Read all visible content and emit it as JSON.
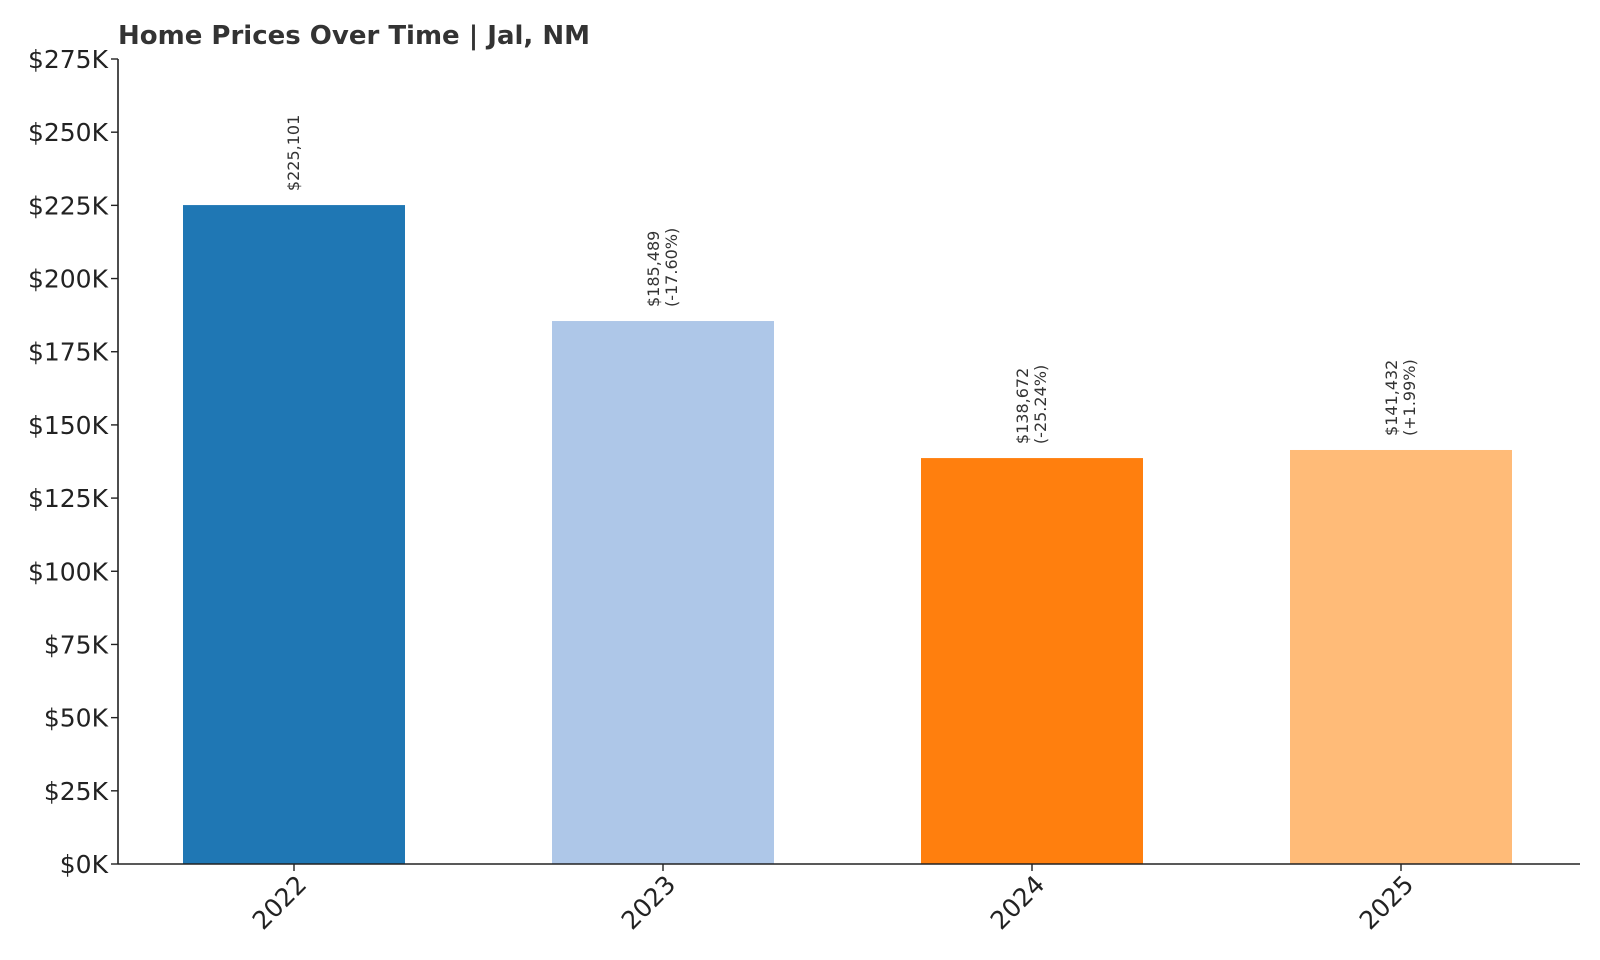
{
  "chart_data": {
    "type": "bar",
    "title": "Home Prices Over Time | Jal, NM",
    "xlabel": "",
    "ylabel": "",
    "categories": [
      "2022",
      "2023",
      "2024",
      "2025"
    ],
    "values": [
      225101,
      185489,
      138672,
      141432
    ],
    "value_labels": [
      "$225,101",
      "$185,489",
      "$138,672",
      "$141,432"
    ],
    "change_labels": [
      "",
      "(-17.60%)",
      "(-25.24%)",
      "(+1.99%)"
    ],
    "bar_colors": [
      "#1f77b4",
      "#aec7e8",
      "#ff7f0e",
      "#ffbb78"
    ],
    "ylim": [
      0,
      275000
    ],
    "yticks": [
      0,
      25000,
      50000,
      75000,
      100000,
      125000,
      150000,
      175000,
      200000,
      225000,
      250000,
      275000
    ],
    "ytick_labels": [
      "$0K",
      "$25K",
      "$50K",
      "$75K",
      "$100K",
      "$125K",
      "$150K",
      "$175K",
      "$200K",
      "$225K",
      "$250K",
      "$275K"
    ],
    "grid": false,
    "legend": "none"
  }
}
